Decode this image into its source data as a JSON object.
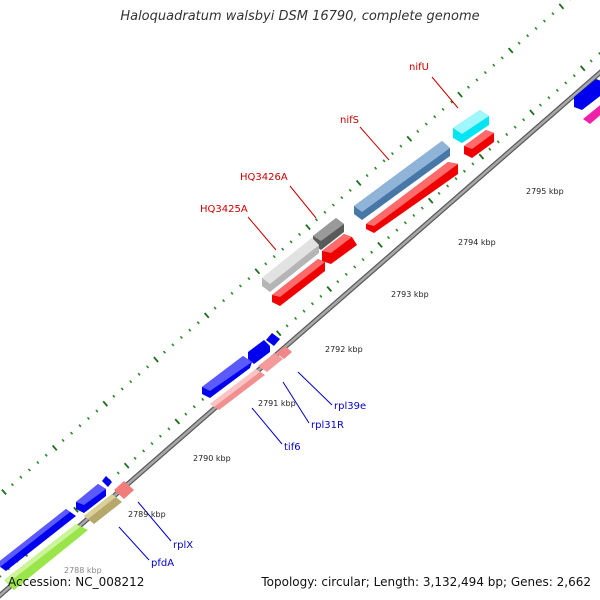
{
  "title": "Haloquadratum walsbyi DSM 16790, complete genome",
  "footer": {
    "accession": "Accession: NC_008212",
    "summary": "Topology: circular; Length: 3,132,494 bp; Genes: 2,662"
  },
  "colors": {
    "backbone": "#8a8a8a",
    "tick_major": "#1a6e1a",
    "tick_minor": "#2a8a2a",
    "label_red": "#cc0000",
    "label_blue": "#0000cc"
  },
  "kbp_labels": [
    "2789 kbp",
    "2790 kbp",
    "2791 kbp",
    "2792 kbp",
    "2793 kbp",
    "2794 kbp",
    "2795 kbp"
  ],
  "partial_kbp_label": "2788 kbp",
  "gene_labels": {
    "nifU": "nifU",
    "nifS": "nifS",
    "hq3426a": "HQ3426A",
    "hq3425a": "HQ3425A",
    "rpl39e": "rpl39e",
    "rpl31r": "rpl31R",
    "tif6": "tif6",
    "rplx": "rplX",
    "pfda": "pfdA"
  }
}
